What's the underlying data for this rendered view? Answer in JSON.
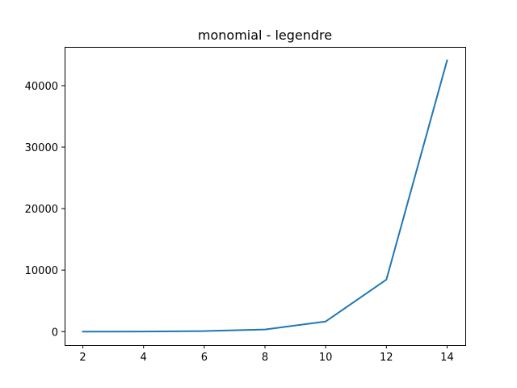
{
  "chart_data": {
    "type": "line",
    "title": "monomial - legendre",
    "xlabel": "",
    "ylabel": "",
    "grid": false,
    "xlim": [
      1.4,
      14.6
    ],
    "ylim": [
      -2200,
      46300
    ],
    "xticks": [
      2,
      4,
      6,
      8,
      10,
      12,
      14
    ],
    "yticks": [
      0,
      10000,
      20000,
      30000,
      40000
    ],
    "series": [
      {
        "color": "#1f77b4",
        "x": [
          2,
          4,
          6,
          8,
          10,
          12,
          14
        ],
        "y": [
          4,
          20,
          90,
          350,
          1650,
          8450,
          44100
        ]
      }
    ]
  }
}
